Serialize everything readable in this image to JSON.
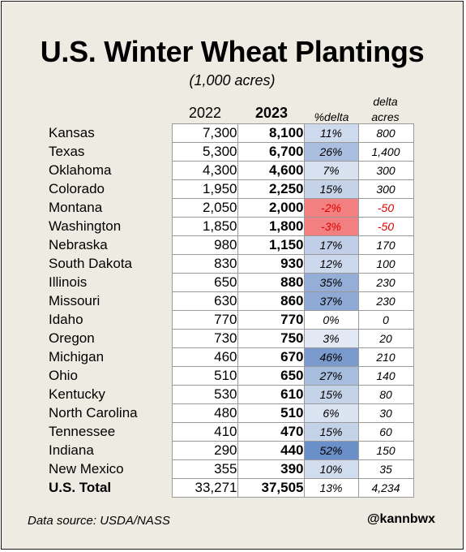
{
  "title": "U.S. Winter Wheat Plantings",
  "subtitle": "(1,000 acres)",
  "headers": {
    "col_2022": "2022",
    "col_2023": "2023",
    "col_pct": "%delta",
    "col_delta_line1": "delta",
    "col_delta_line2": "acres"
  },
  "source": "Data source: USDA/NASS",
  "handle": "@kannbwx",
  "colors": {
    "background": "#eeece2",
    "increase_shade": "#6b8fc8",
    "decrease_shade": "#f28080",
    "negative_text": "#e00000"
  },
  "chart_data": {
    "type": "table",
    "title": "U.S. Winter Wheat Plantings",
    "subtitle": "(1,000 acres)",
    "columns": [
      "2022",
      "2023",
      "%delta",
      "delta acres"
    ],
    "rows": [
      {
        "state": "Kansas",
        "y2022": "7,300",
        "y2023": "8,100",
        "pct": "11%",
        "pct_value": 11,
        "delta": "800"
      },
      {
        "state": "Texas",
        "y2022": "5,300",
        "y2023": "6,700",
        "pct": "26%",
        "pct_value": 26,
        "delta": "1,400"
      },
      {
        "state": "Oklahoma",
        "y2022": "4,300",
        "y2023": "4,600",
        "pct": "7%",
        "pct_value": 7,
        "delta": "300"
      },
      {
        "state": "Colorado",
        "y2022": "1,950",
        "y2023": "2,250",
        "pct": "15%",
        "pct_value": 15,
        "delta": "300"
      },
      {
        "state": "Montana",
        "y2022": "2,050",
        "y2023": "2,000",
        "pct": "-2%",
        "pct_value": -2,
        "delta": "-50"
      },
      {
        "state": "Washington",
        "y2022": "1,850",
        "y2023": "1,800",
        "pct": "-3%",
        "pct_value": -3,
        "delta": "-50"
      },
      {
        "state": "Nebraska",
        "y2022": "980",
        "y2023": "1,150",
        "pct": "17%",
        "pct_value": 17,
        "delta": "170"
      },
      {
        "state": "South Dakota",
        "y2022": "830",
        "y2023": "930",
        "pct": "12%",
        "pct_value": 12,
        "delta": "100"
      },
      {
        "state": "Illinois",
        "y2022": "650",
        "y2023": "880",
        "pct": "35%",
        "pct_value": 35,
        "delta": "230"
      },
      {
        "state": "Missouri",
        "y2022": "630",
        "y2023": "860",
        "pct": "37%",
        "pct_value": 37,
        "delta": "230"
      },
      {
        "state": "Idaho",
        "y2022": "770",
        "y2023": "770",
        "pct": "0%",
        "pct_value": 0,
        "delta": "0"
      },
      {
        "state": "Oregon",
        "y2022": "730",
        "y2023": "750",
        "pct": "3%",
        "pct_value": 3,
        "delta": "20"
      },
      {
        "state": "Michigan",
        "y2022": "460",
        "y2023": "670",
        "pct": "46%",
        "pct_value": 46,
        "delta": "210"
      },
      {
        "state": "Ohio",
        "y2022": "510",
        "y2023": "650",
        "pct": "27%",
        "pct_value": 27,
        "delta": "140"
      },
      {
        "state": "Kentucky",
        "y2022": "530",
        "y2023": "610",
        "pct": "15%",
        "pct_value": 15,
        "delta": "80"
      },
      {
        "state": "North Carolina",
        "y2022": "480",
        "y2023": "510",
        "pct": "6%",
        "pct_value": 6,
        "delta": "30"
      },
      {
        "state": "Tennessee",
        "y2022": "410",
        "y2023": "470",
        "pct": "15%",
        "pct_value": 15,
        "delta": "60"
      },
      {
        "state": "Indiana",
        "y2022": "290",
        "y2023": "440",
        "pct": "52%",
        "pct_value": 52,
        "delta": "150"
      },
      {
        "state": "New Mexico",
        "y2022": "355",
        "y2023": "390",
        "pct": "10%",
        "pct_value": 10,
        "delta": "35"
      }
    ],
    "total": {
      "state": "U.S. Total",
      "y2022": "33,271",
      "y2023": "37,505",
      "pct": "13%",
      "pct_value": 13,
      "delta": "4,234"
    }
  }
}
